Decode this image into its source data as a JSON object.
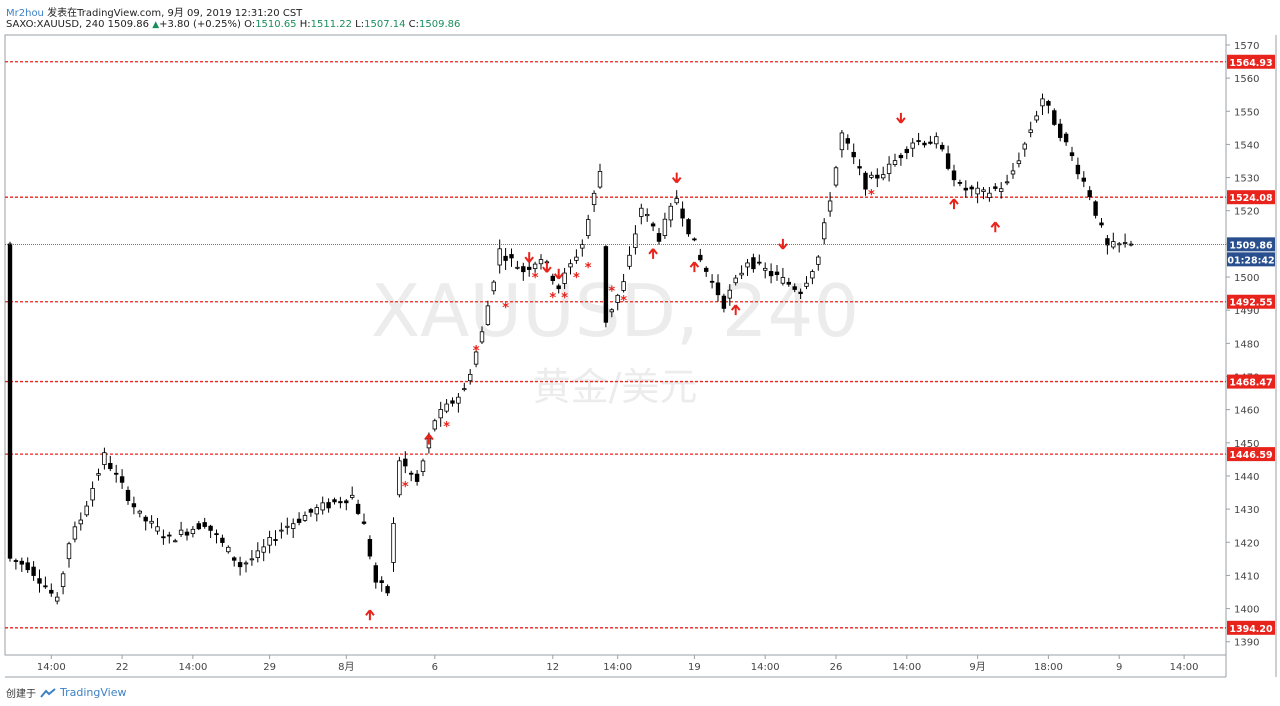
{
  "header": {
    "author": "Mr2hou",
    "published": "发表在TradingView.com, 9月 09, 2019 12:31:20 CST",
    "symbol": "SAXO:XAUUSD, 240",
    "last": "1509.86",
    "change_arrow": "▲",
    "change": "+3.80 (+0.25%)",
    "o_label": "O:",
    "o": "1510.65",
    "h_label": "H:",
    "h": "1511.22",
    "l_label": "L:",
    "l": "1507.14",
    "c_label": "C:",
    "c": "1509.86"
  },
  "footer": {
    "created_by": "创建于",
    "brand": "TradingView",
    "brand_icon": "tradingview-logo-icon"
  },
  "colors": {
    "level_line": "#e8231c",
    "price_line": "#2a4f8f",
    "up_candle_fill": "#ffffff",
    "down_candle_fill": "#000000",
    "marker": "#e8231c",
    "watermark": "#ececec"
  },
  "chart_data": {
    "type": "candlestick",
    "watermark_symbol": "XAUUSD, 240",
    "watermark_name": "黄金/美元",
    "y_axis": {
      "ticks": [
        1390,
        1400,
        1410,
        1420,
        1430,
        1440,
        1450,
        1460,
        1470,
        1480,
        1490,
        1500,
        1510,
        1520,
        1530,
        1540,
        1550,
        1560,
        1570
      ],
      "ylim": [
        1386,
        1573
      ]
    },
    "x_axis": {
      "ticks": [
        "14:00",
        "22",
        "14:00",
        "29",
        "8月",
        "6",
        "12",
        "14:00",
        "19",
        "14:00",
        "26",
        "14:00",
        "9月",
        "18:00",
        "9",
        "14:00"
      ],
      "tick_bar_index": [
        7,
        19,
        31,
        44,
        57,
        72,
        92,
        103,
        116,
        128,
        140,
        152,
        164,
        176,
        188,
        199
      ]
    },
    "levels": [
      1564.93,
      1524.08,
      1492.55,
      1468.47,
      1446.59,
      1394.2
    ],
    "level_labels": [
      "1564.93",
      "1524.08",
      "1492.55",
      "1468.47",
      "1446.59",
      "1394.20"
    ],
    "current_price": 1509.86,
    "current_price_label": "1509.86",
    "countdown_label": "01:28:42",
    "anchors": [
      [
        0,
        1415
      ],
      [
        3,
        1413
      ],
      [
        6,
        1407
      ],
      [
        8,
        1402
      ],
      [
        10,
        1420
      ],
      [
        12,
        1427
      ],
      [
        16,
        1446
      ],
      [
        18,
        1440
      ],
      [
        22,
        1428
      ],
      [
        27,
        1421
      ],
      [
        33,
        1426
      ],
      [
        39,
        1413
      ],
      [
        42,
        1416
      ],
      [
        46,
        1424
      ],
      [
        52,
        1430
      ],
      [
        58,
        1434
      ],
      [
        60,
        1425
      ],
      [
        62,
        1408
      ],
      [
        64,
        1405
      ],
      [
        66,
        1445
      ],
      [
        69,
        1438
      ],
      [
        72,
        1457
      ],
      [
        77,
        1466
      ],
      [
        80,
        1483
      ],
      [
        83,
        1508
      ],
      [
        87,
        1502
      ],
      [
        90,
        1506
      ],
      [
        93,
        1497
      ],
      [
        97,
        1510
      ],
      [
        100,
        1532
      ],
      [
        101,
        1487
      ],
      [
        104,
        1498
      ],
      [
        107,
        1521
      ],
      [
        110,
        1512
      ],
      [
        113,
        1524
      ],
      [
        117,
        1505
      ],
      [
        121,
        1492
      ],
      [
        125,
        1505
      ],
      [
        129,
        1501
      ],
      [
        134,
        1496
      ],
      [
        137,
        1506
      ],
      [
        140,
        1533
      ],
      [
        141,
        1543
      ],
      [
        145,
        1528
      ],
      [
        149,
        1533
      ],
      [
        153,
        1541
      ],
      [
        157,
        1541
      ],
      [
        161,
        1527
      ],
      [
        165,
        1525
      ],
      [
        169,
        1528
      ],
      [
        172,
        1540
      ],
      [
        175,
        1554
      ],
      [
        179,
        1540
      ],
      [
        183,
        1525
      ],
      [
        186,
        1509
      ],
      [
        190,
        1510
      ]
    ],
    "markers": [
      {
        "bar": 61,
        "price": 1398,
        "kind": "up-arrow"
      },
      {
        "bar": 67,
        "price": 1437,
        "kind": "asterisk"
      },
      {
        "bar": 71,
        "price": 1451,
        "kind": "up-arrow"
      },
      {
        "bar": 74,
        "price": 1455,
        "kind": "asterisk"
      },
      {
        "bar": 79,
        "price": 1478,
        "kind": "asterisk"
      },
      {
        "bar": 84,
        "price": 1491,
        "kind": "asterisk"
      },
      {
        "bar": 88,
        "price": 1506,
        "kind": "down-arrow"
      },
      {
        "bar": 89,
        "price": 1500,
        "kind": "asterisk"
      },
      {
        "bar": 91,
        "price": 1503,
        "kind": "down-arrow"
      },
      {
        "bar": 92,
        "price": 1494,
        "kind": "asterisk"
      },
      {
        "bar": 93,
        "price": 1501,
        "kind": "down-arrow"
      },
      {
        "bar": 94,
        "price": 1494,
        "kind": "asterisk"
      },
      {
        "bar": 96,
        "price": 1500,
        "kind": "asterisk"
      },
      {
        "bar": 98,
        "price": 1503,
        "kind": "asterisk"
      },
      {
        "bar": 102,
        "price": 1496,
        "kind": "asterisk"
      },
      {
        "bar": 104,
        "price": 1493,
        "kind": "asterisk"
      },
      {
        "bar": 109,
        "price": 1507,
        "kind": "up-arrow"
      },
      {
        "bar": 113,
        "price": 1530,
        "kind": "down-arrow"
      },
      {
        "bar": 116,
        "price": 1503,
        "kind": "up-arrow"
      },
      {
        "bar": 123,
        "price": 1490,
        "kind": "up-arrow"
      },
      {
        "bar": 131,
        "price": 1510,
        "kind": "down-arrow"
      },
      {
        "bar": 146,
        "price": 1525,
        "kind": "asterisk"
      },
      {
        "bar": 151,
        "price": 1548,
        "kind": "down-arrow"
      },
      {
        "bar": 160,
        "price": 1522,
        "kind": "up-arrow"
      },
      {
        "bar": 167,
        "price": 1515,
        "kind": "up-arrow"
      }
    ]
  }
}
